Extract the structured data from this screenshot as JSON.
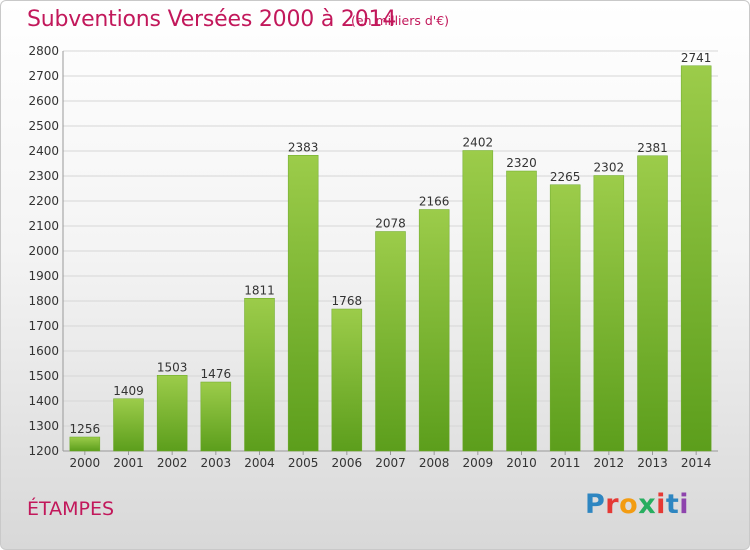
{
  "header": {
    "title": "Subventions Versées 2000 à 2014",
    "subtitle": "(en milliers d'€)"
  },
  "footer": {
    "city": "ÉTAMPES",
    "logo_letters": [
      "P",
      "r",
      "o",
      "x",
      "i",
      "t",
      "i"
    ],
    "logo_colors": [
      "#2e86c1",
      "#e53935",
      "#f39c12",
      "#27ae60",
      "#e53935",
      "#2e86c1",
      "#8e44ad"
    ]
  },
  "colors": {
    "bar_top": "#9ccc4a",
    "bar_bottom": "#5c9e1c",
    "grid": "#d6d6d6",
    "axis_text": "#333333"
  },
  "chart_data": {
    "type": "bar",
    "title": "Subventions Versées 2000 à 2014",
    "xlabel": "",
    "ylabel": "",
    "categories": [
      "2000",
      "2001",
      "2002",
      "2003",
      "2004",
      "2005",
      "2006",
      "2007",
      "2008",
      "2009",
      "2010",
      "2011",
      "2012",
      "2013",
      "2014"
    ],
    "values": [
      1256,
      1409,
      1503,
      1476,
      1811,
      2383,
      1768,
      2078,
      2166,
      2402,
      2320,
      2265,
      2302,
      2381,
      2741
    ],
    "ylim": [
      1200,
      2800
    ],
    "yticks": [
      1200,
      1300,
      1400,
      1500,
      1600,
      1700,
      1800,
      1900,
      2000,
      2100,
      2200,
      2300,
      2400,
      2500,
      2600,
      2700,
      2800
    ],
    "grid": true,
    "data_labels": true
  }
}
